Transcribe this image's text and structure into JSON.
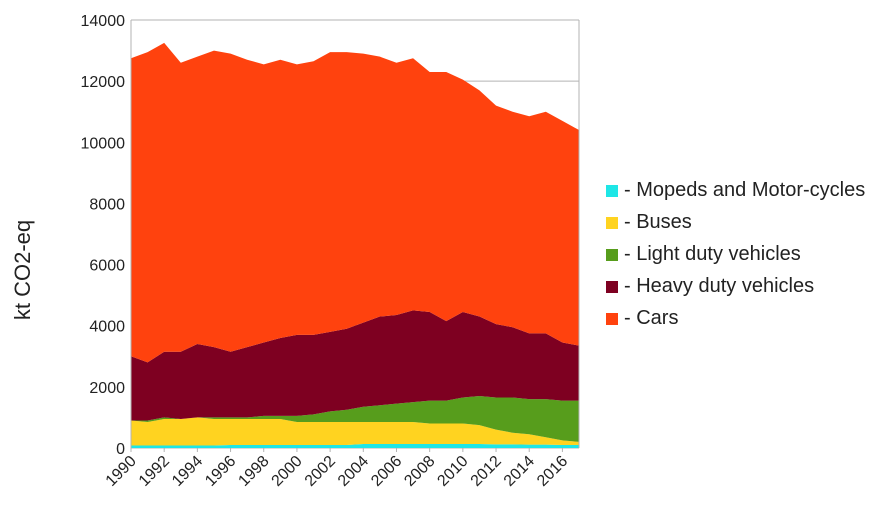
{
  "chart_data": {
    "type": "stacked_area",
    "y_label": "kt CO2-eq",
    "x": [
      1990,
      1991,
      1992,
      1993,
      1994,
      1995,
      1996,
      1997,
      1998,
      1999,
      2000,
      2001,
      2002,
      2003,
      2004,
      2005,
      2006,
      2007,
      2008,
      2009,
      2010,
      2011,
      2012,
      2013,
      2014,
      2015,
      2016,
      2017
    ],
    "xlim": [
      1990,
      2017
    ],
    "xticks": [
      1990,
      1992,
      1994,
      1996,
      1998,
      2000,
      2002,
      2004,
      2006,
      2008,
      2010,
      2012,
      2014,
      2016
    ],
    "ylim": [
      0,
      14000
    ],
    "yticks": [
      0,
      2000,
      4000,
      6000,
      8000,
      10000,
      12000,
      14000
    ],
    "grid": true,
    "legend": "right",
    "series": [
      {
        "name": "- Mopeds and Motor-cycles",
        "color": "#1ee6e6",
        "values": [
          80,
          80,
          80,
          80,
          80,
          80,
          100,
          100,
          100,
          100,
          100,
          100,
          100,
          100,
          130,
          130,
          130,
          130,
          130,
          130,
          130,
          130,
          120,
          120,
          110,
          110,
          100,
          100
        ]
      },
      {
        "name": "- Buses",
        "color": "#ffd320",
        "values": [
          820,
          770,
          870,
          870,
          920,
          870,
          850,
          850,
          850,
          850,
          750,
          750,
          750,
          750,
          720,
          720,
          720,
          720,
          670,
          670,
          670,
          620,
          480,
          380,
          340,
          240,
          150,
          100
        ]
      },
      {
        "name": "- Light duty vehicles",
        "color": "#579d1c",
        "values": [
          0,
          50,
          50,
          0,
          0,
          50,
          50,
          50,
          100,
          100,
          200,
          250,
          350,
          400,
          500,
          550,
          600,
          650,
          750,
          750,
          850,
          950,
          1050,
          1150,
          1150,
          1250,
          1300,
          1350
        ]
      },
      {
        "name": "- Heavy duty vehicles",
        "color": "#7e0021",
        "values": [
          2100,
          1900,
          2150,
          2200,
          2400,
          2300,
          2150,
          2300,
          2400,
          2550,
          2650,
          2600,
          2600,
          2650,
          2750,
          2900,
          2900,
          3000,
          2900,
          2600,
          2800,
          2600,
          2400,
          2300,
          2150,
          2150,
          1900,
          1800
        ]
      },
      {
        "name": "- Cars",
        "color": "#ff420e",
        "values": [
          9750,
          10150,
          10100,
          9450,
          9400,
          9700,
          9750,
          9400,
          9100,
          9100,
          8850,
          8950,
          9150,
          9050,
          8800,
          8500,
          8250,
          8250,
          7850,
          8150,
          7600,
          7400,
          7150,
          7050,
          7100,
          7250,
          7250,
          7050
        ]
      }
    ]
  }
}
